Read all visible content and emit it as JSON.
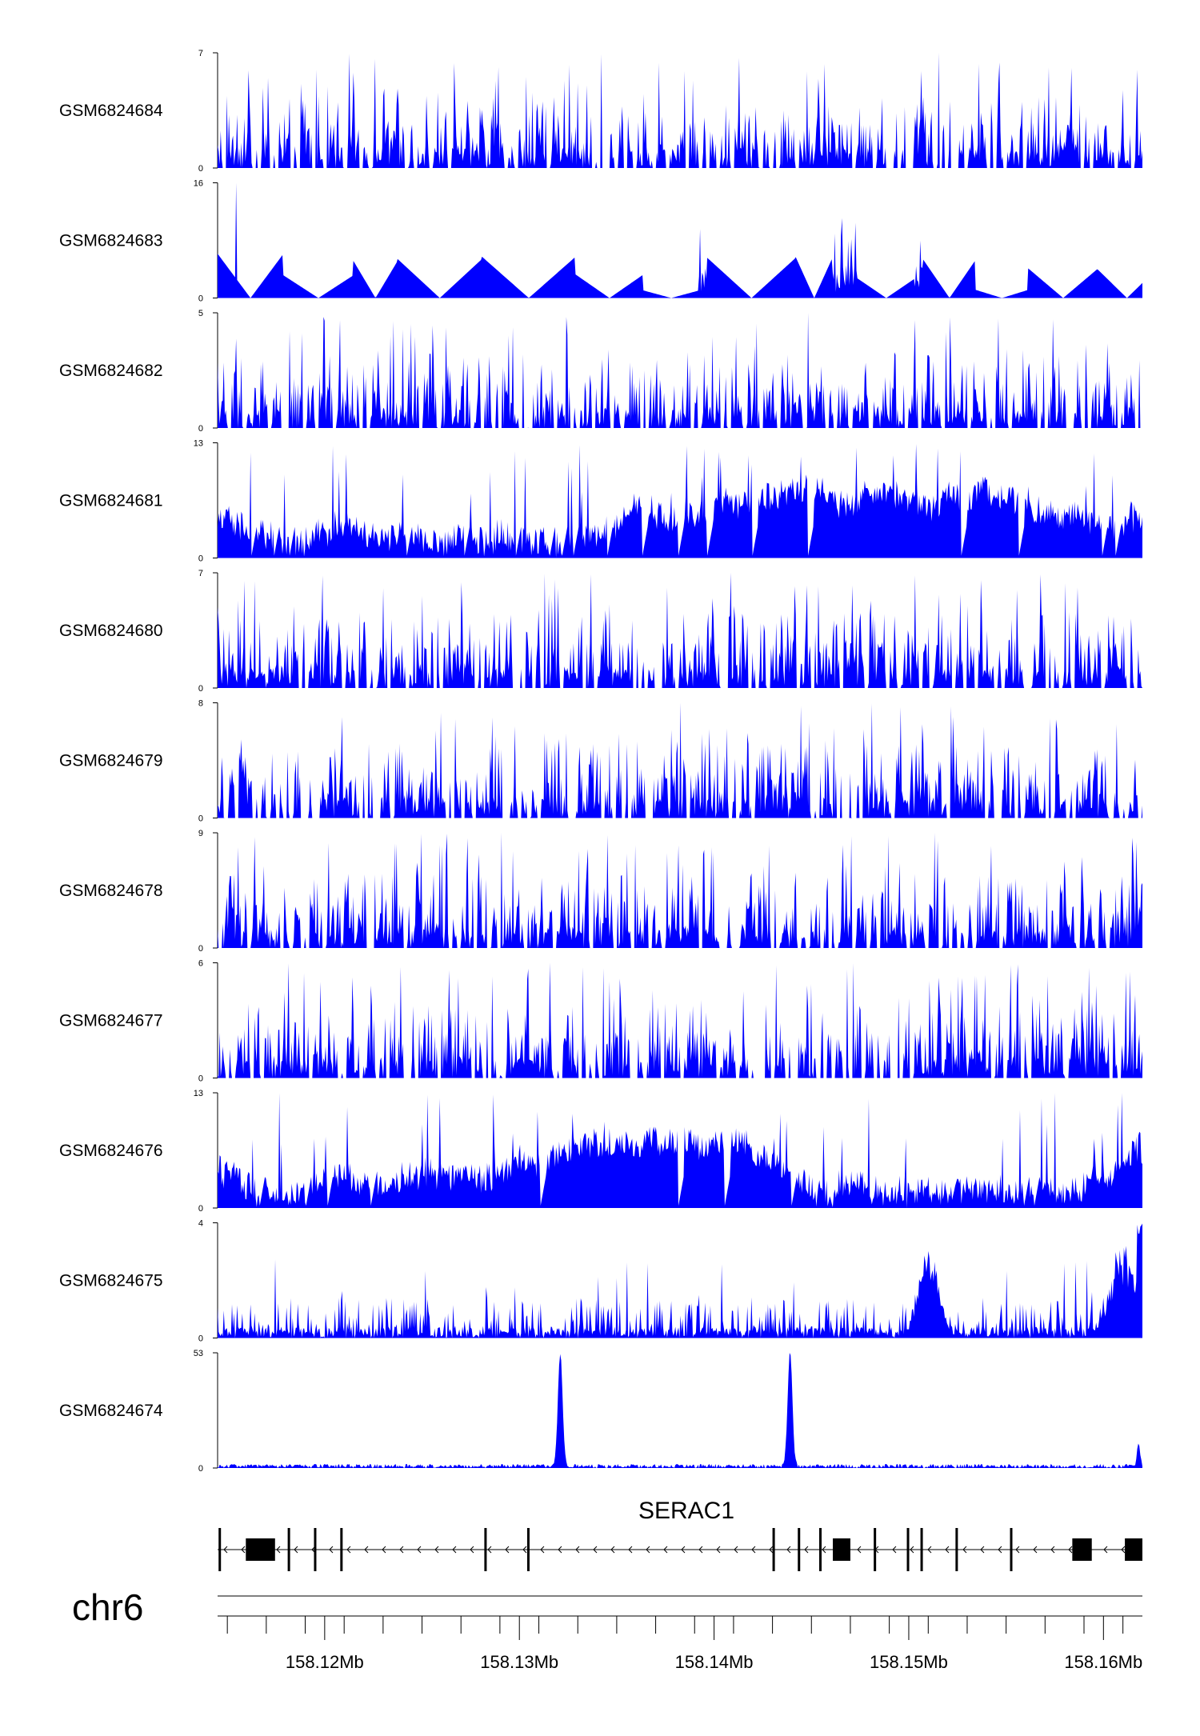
{
  "chart_data": {
    "type": "area",
    "fill_color": "#0000FF",
    "chromosome": "chr6",
    "x_range_mb": [
      158.1145,
      158.162
    ],
    "tracks": [
      {
        "name": "GSM6824684",
        "ymax": 7,
        "profile": "spiky"
      },
      {
        "name": "GSM6824683",
        "ymax": 16,
        "profile": "sparse"
      },
      {
        "name": "GSM6824682",
        "ymax": 5,
        "profile": "spiky"
      },
      {
        "name": "GSM6824681",
        "ymax": 13,
        "profile": "dense"
      },
      {
        "name": "GSM6824680",
        "ymax": 7,
        "profile": "spiky"
      },
      {
        "name": "GSM6824679",
        "ymax": 8,
        "profile": "spiky"
      },
      {
        "name": "GSM6824678",
        "ymax": 9,
        "profile": "spiky"
      },
      {
        "name": "GSM6824677",
        "ymax": 6,
        "profile": "spiky"
      },
      {
        "name": "GSM6824676",
        "ymax": 13,
        "profile": "dense"
      },
      {
        "name": "GSM6824675",
        "ymax": 4,
        "profile": "clustered",
        "clusters_mb": [
          158.151,
          158.161
        ]
      },
      {
        "name": "GSM6824674",
        "ymax": 53,
        "profile": "peaks",
        "peaks_mb": [
          {
            "x": 158.1321,
            "y": 52
          },
          {
            "x": 158.1439,
            "y": 53
          },
          {
            "x": 158.1618,
            "y": 10
          }
        ]
      }
    ],
    "gene": {
      "name": "SERAC1",
      "strand": "-",
      "start_mb": 158.1145,
      "end_mb": 158.162,
      "exons_mb": [
        [
          158.11455,
          158.11465
        ],
        [
          158.11595,
          158.11745
        ],
        [
          158.1181,
          158.1182
        ],
        [
          158.11945,
          158.11955
        ],
        [
          158.1208,
          158.1209
        ],
        [
          158.1282,
          158.1283
        ],
        [
          158.1304,
          158.1305
        ],
        [
          158.143,
          158.1431
        ],
        [
          158.1443,
          158.1444
        ],
        [
          158.1454,
          158.1455
        ],
        [
          158.1461,
          158.147
        ],
        [
          158.1482,
          158.1483
        ],
        [
          158.1499,
          158.15
        ],
        [
          158.1506,
          158.1507
        ],
        [
          158.1524,
          158.1525
        ],
        [
          158.1552,
          158.1553
        ],
        [
          158.1584,
          158.1594
        ],
        [
          158.1611,
          158.162
        ]
      ]
    },
    "x_ticks_mb": [
      158.115,
      158.117,
      158.119,
      158.121,
      158.123,
      158.125,
      158.127,
      158.129,
      158.131,
      158.133,
      158.135,
      158.137,
      158.139,
      158.141,
      158.143,
      158.145,
      158.147,
      158.149,
      158.151,
      158.153,
      158.155,
      158.157,
      158.159,
      158.161
    ],
    "x_tick_labels": [
      {
        "mb": 158.12,
        "label": "158.12Mb"
      },
      {
        "mb": 158.13,
        "label": "158.13Mb"
      },
      {
        "mb": 158.14,
        "label": "158.14Mb"
      },
      {
        "mb": 158.15,
        "label": "158.15Mb"
      },
      {
        "mb": 158.16,
        "label": "158.16Mb"
      }
    ]
  }
}
